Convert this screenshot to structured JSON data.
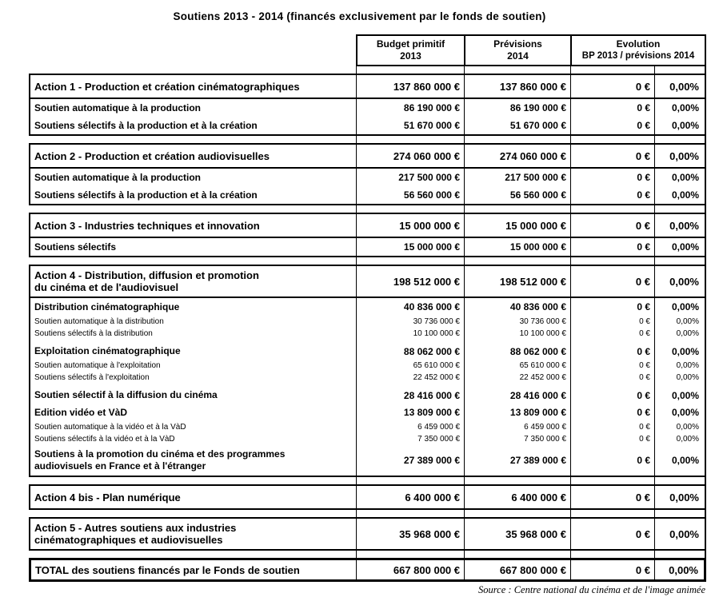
{
  "title": "Soutiens 2013 - 2014 (financés exclusivement par le fonds de soutien)",
  "source": "Source : Centre national du cinéma et de l'image animée",
  "colors": {
    "text": "#000000",
    "border": "#000000",
    "background": "#ffffff"
  },
  "header": {
    "col_budget": {
      "line1": "Budget primitif",
      "line2": "2013"
    },
    "col_previsions": {
      "line1": "Prévisions",
      "line2": "2014"
    },
    "col_evolution": {
      "line1": "Evolution",
      "line2": "BP 2013 / prévisions 2014"
    }
  },
  "groups": [
    {
      "id": "action-1",
      "header": {
        "label": "Action 1 - Production et création cinématographiques",
        "bp2013": "137 860 000 €",
        "prev2014": "137 860 000 €",
        "evo_eur": "0 €",
        "evo_pct": "0,00%"
      },
      "rows": [
        {
          "kind": "main",
          "label": "Soutien automatique à la production",
          "bp2013": "86 190 000 €",
          "prev2014": "86 190 000 €",
          "evo_eur": "0 €",
          "evo_pct": "0,00%"
        },
        {
          "kind": "main",
          "label": "Soutiens sélectifs à la production et à la création",
          "bp2013": "51 670 000 €",
          "prev2014": "51 670 000 €",
          "evo_eur": "0 €",
          "evo_pct": "0,00%"
        }
      ]
    },
    {
      "id": "action-2",
      "header": {
        "label": "Action 2 - Production et création audiovisuelles",
        "bp2013": "274 060 000 €",
        "prev2014": "274 060 000 €",
        "evo_eur": "0 €",
        "evo_pct": "0,00%"
      },
      "rows": [
        {
          "kind": "main",
          "label": "Soutien automatique à la production",
          "bp2013": "217 500 000 €",
          "prev2014": "217 500 000 €",
          "evo_eur": "0 €",
          "evo_pct": "0,00%"
        },
        {
          "kind": "main",
          "label": "Soutiens sélectifs à la production et à la création",
          "bp2013": "56 560 000 €",
          "prev2014": "56 560 000 €",
          "evo_eur": "0 €",
          "evo_pct": "0,00%"
        }
      ]
    },
    {
      "id": "action-3",
      "header": {
        "label": "Action 3 - Industries techniques et innovation",
        "bp2013": "15 000 000 €",
        "prev2014": "15 000 000 €",
        "evo_eur": "0 €",
        "evo_pct": "0,00%"
      },
      "rows": [
        {
          "kind": "main",
          "label": "Soutiens sélectifs",
          "bp2013": "15 000 000 €",
          "prev2014": "15 000 000 €",
          "evo_eur": "0 €",
          "evo_pct": "0,00%"
        }
      ]
    },
    {
      "id": "action-4",
      "header": {
        "label": "Action 4 - Distribution, diffusion et promotion\ndu cinéma et de l'audiovisuel",
        "bp2013": "198 512 000 €",
        "prev2014": "198 512 000 €",
        "evo_eur": "0 €",
        "evo_pct": "0,00%"
      },
      "rows": [
        {
          "kind": "main",
          "label": "Distribution cinématographique",
          "bp2013": "40 836 000 €",
          "prev2014": "40 836 000 €",
          "evo_eur": "0 €",
          "evo_pct": "0,00%"
        },
        {
          "kind": "detail",
          "label": "Soutien automatique à la distribution",
          "bp2013": "30 736 000 €",
          "prev2014": "30 736 000 €",
          "evo_eur": "0 €",
          "evo_pct": "0,00%"
        },
        {
          "kind": "detail",
          "label": "Soutiens sélectifs à la distribution",
          "bp2013": "10 100 000 €",
          "prev2014": "10 100 000 €",
          "evo_eur": "0 €",
          "evo_pct": "0,00%"
        },
        {
          "kind": "main",
          "label": "Exploitation cinématographique",
          "bp2013": "88 062 000 €",
          "prev2014": "88 062 000 €",
          "evo_eur": "0 €",
          "evo_pct": "0,00%"
        },
        {
          "kind": "detail",
          "label": "Soutien automatique à l'exploitation",
          "bp2013": "65 610 000 €",
          "prev2014": "65 610 000 €",
          "evo_eur": "0 €",
          "evo_pct": "0,00%"
        },
        {
          "kind": "detail",
          "label": "Soutiens sélectifs à l'exploitation",
          "bp2013": "22 452 000 €",
          "prev2014": "22 452 000 €",
          "evo_eur": "0 €",
          "evo_pct": "0,00%"
        },
        {
          "kind": "main",
          "label": "Soutien sélectif à la diffusion du cinéma",
          "bp2013": "28 416 000 €",
          "prev2014": "28 416 000 €",
          "evo_eur": "0 €",
          "evo_pct": "0,00%"
        },
        {
          "kind": "main",
          "label": "Edition vidéo et VàD",
          "bp2013": "13 809 000 €",
          "prev2014": "13 809 000 €",
          "evo_eur": "0 €",
          "evo_pct": "0,00%"
        },
        {
          "kind": "detail",
          "label": "Soutien automatique à la vidéo et à la VàD",
          "bp2013": "6 459 000 €",
          "prev2014": "6 459 000 €",
          "evo_eur": "0 €",
          "evo_pct": "0,00%"
        },
        {
          "kind": "detail",
          "label": "Soutiens sélectifs à la vidéo et à la VàD",
          "bp2013": "7 350 000 €",
          "prev2014": "7 350 000 €",
          "evo_eur": "0 €",
          "evo_pct": "0,00%"
        },
        {
          "kind": "main",
          "label": "Soutiens à la promotion du cinéma et des programmes\naudiovisuels en France et à l'étranger",
          "bp2013": "27 389 000 €",
          "prev2014": "27 389 000 €",
          "evo_eur": "0 €",
          "evo_pct": "0,00%"
        }
      ]
    },
    {
      "id": "action-4bis",
      "header": {
        "label": "Action 4 bis - Plan numérique",
        "bp2013": "6 400 000 €",
        "prev2014": "6 400 000 €",
        "evo_eur": "0 €",
        "evo_pct": "0,00%"
      },
      "rows": []
    },
    {
      "id": "action-5",
      "header": {
        "label": "Action 5 - Autres soutiens aux industries\ncinématographiques et audiovisuelles",
        "bp2013": "35 968 000 €",
        "prev2014": "35 968 000 €",
        "evo_eur": "0 €",
        "evo_pct": "0,00%"
      },
      "rows": []
    },
    {
      "id": "total",
      "total": true,
      "header": {
        "label": "TOTAL des soutiens financés par le Fonds de soutien",
        "bp2013": "667 800 000 €",
        "prev2014": "667 800 000 €",
        "evo_eur": "0 €",
        "evo_pct": "0,00%"
      },
      "rows": []
    }
  ]
}
